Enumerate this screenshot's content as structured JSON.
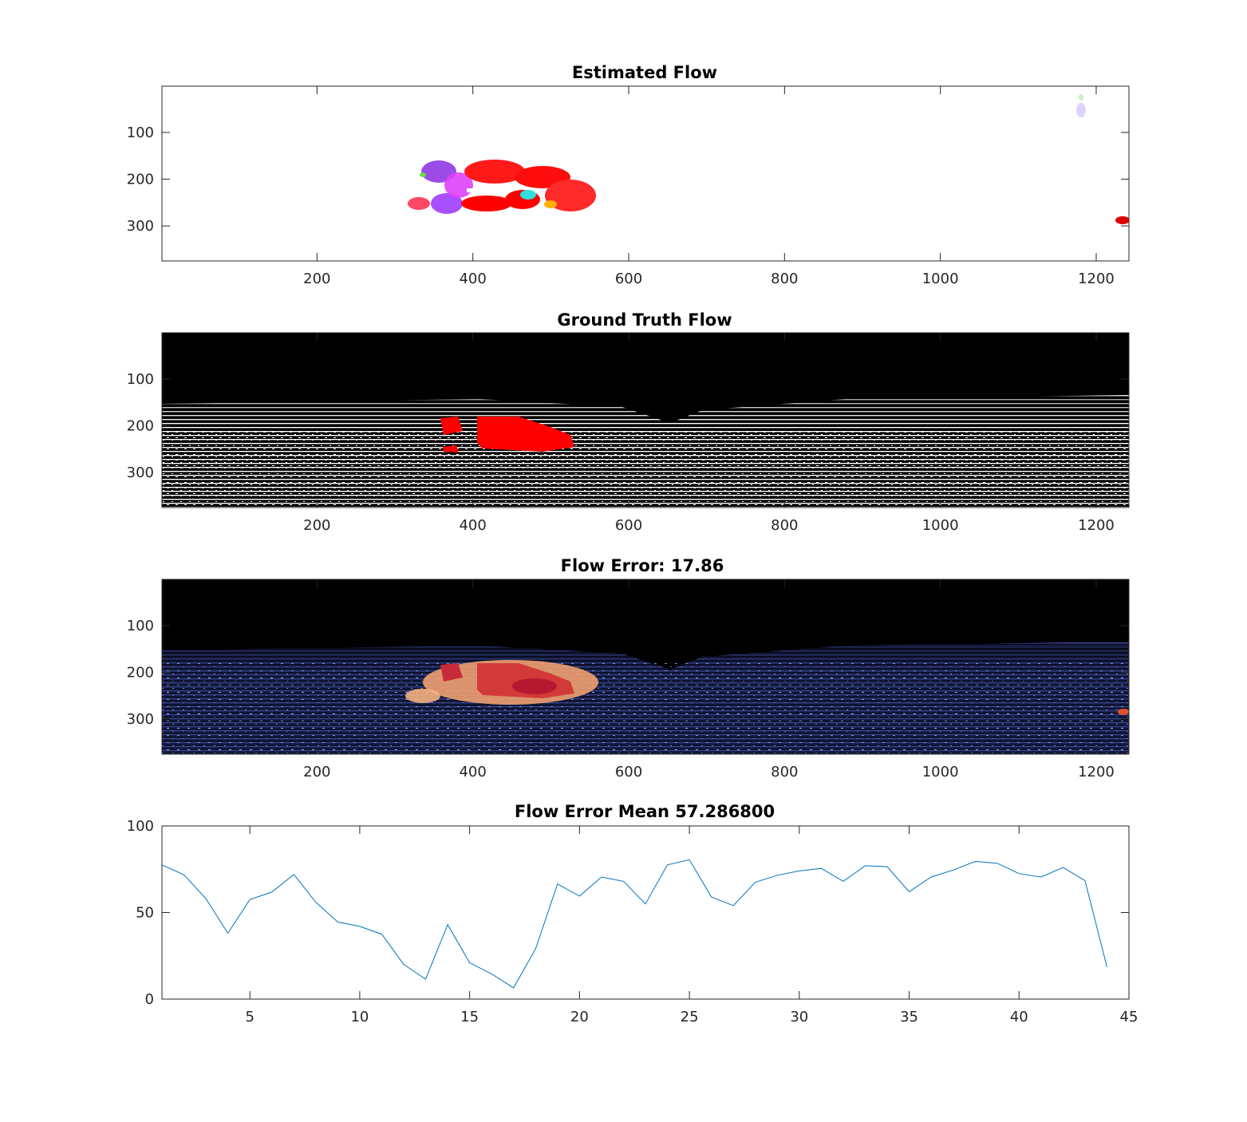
{
  "figure": {
    "panels": [
      {
        "title": "Estimated Flow",
        "image_kind": "estimated-flow",
        "background": "#ffffff"
      },
      {
        "title": "Ground Truth Flow",
        "image_kind": "ground-truth-flow",
        "background": "#000000"
      },
      {
        "title": "Flow Error: 17.86",
        "image_kind": "flow-error",
        "background": "#000000"
      }
    ],
    "image_axes": {
      "x_ticks": [
        "200",
        "400",
        "600",
        "800",
        "1000",
        "1200"
      ],
      "x_tick_values": [
        200,
        400,
        600,
        800,
        1000,
        1200
      ],
      "y_ticks": [
        "100",
        "200",
        "300"
      ],
      "y_tick_values": [
        100,
        200,
        300
      ],
      "xlim": [
        1,
        1242
      ],
      "ylim": [
        1,
        375
      ]
    },
    "colors": {
      "line": "#0072bd",
      "red": "#ff0000",
      "error_low": "#2e3a8c",
      "error_high": "#b5192f",
      "axis": "#262626"
    }
  },
  "chart_data": {
    "type": "line",
    "title": "Flow Error Mean 57.286800",
    "xlabel": "",
    "ylabel": "",
    "xlim": [
      1,
      45
    ],
    "ylim": [
      0,
      100
    ],
    "x_ticks": [
      "5",
      "10",
      "15",
      "20",
      "25",
      "30",
      "35",
      "40",
      "45"
    ],
    "x_tick_values": [
      5,
      10,
      15,
      20,
      25,
      30,
      35,
      40,
      45
    ],
    "y_ticks": [
      "0",
      "50",
      "100"
    ],
    "y_tick_values": [
      0,
      50,
      100
    ],
    "series": [
      {
        "name": "flow error",
        "x": [
          1,
          2,
          3,
          4,
          5,
          6,
          7,
          8,
          9,
          10,
          11,
          12,
          13,
          14,
          15,
          16,
          17,
          18,
          19,
          20,
          21,
          22,
          23,
          24,
          25,
          26,
          27,
          28,
          29,
          30,
          31,
          32,
          33,
          34,
          35,
          36,
          37,
          38,
          39,
          40,
          41,
          42,
          43,
          44
        ],
        "values": [
          77.5,
          71.8,
          58.0,
          38.0,
          57.5,
          61.8,
          72.0,
          56.0,
          44.5,
          42.0,
          37.5,
          20.0,
          11.5,
          43.0,
          21.0,
          14.5,
          6.5,
          29.0,
          66.5,
          59.5,
          70.5,
          68.0,
          55.0,
          77.5,
          80.5,
          59.0,
          54.0,
          67.5,
          71.5,
          74.0,
          75.5,
          68.0,
          77.0,
          76.5,
          62.0,
          70.5,
          74.5,
          79.5,
          78.5,
          72.5,
          70.5,
          76.0,
          68.5,
          18.5
        ]
      }
    ]
  }
}
